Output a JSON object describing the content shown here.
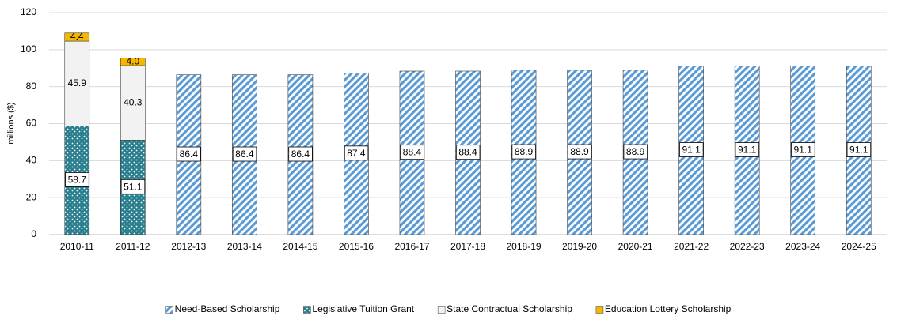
{
  "chart_data": {
    "type": "stacked_bar",
    "y_label": "millions ($)",
    "categories": [
      "2010-11",
      "2011-12",
      "2012-13",
      "2013-14",
      "2014-15",
      "2015-16",
      "2016-17",
      "2017-18",
      "2018-19",
      "2019-20",
      "2020-21",
      "2021-22",
      "2022-23",
      "2023-24",
      "2024-25"
    ],
    "series": [
      {
        "name": "Need-Based Scholarship",
        "color": "#5b9bd5",
        "pattern": "hatch",
        "label_style": "boxed",
        "values": [
          null,
          null,
          86.4,
          86.4,
          86.4,
          87.4,
          88.4,
          88.4,
          88.9,
          88.9,
          88.9,
          91.1,
          91.1,
          91.1,
          91.1
        ]
      },
      {
        "name": "Legislative Tuition Grant",
        "color": "#2a7f8f",
        "pattern": "dots",
        "label_style": "boxed",
        "values": [
          58.7,
          51.1,
          null,
          null,
          null,
          null,
          null,
          null,
          null,
          null,
          null,
          null,
          null,
          null,
          null
        ]
      },
      {
        "name": "State Contractual Scholarship",
        "color": "#f2f2f2",
        "pattern": "solid",
        "label_style": "plain",
        "values": [
          45.9,
          40.3,
          null,
          null,
          null,
          null,
          null,
          null,
          null,
          null,
          null,
          null,
          null,
          null,
          null
        ]
      },
      {
        "name": "Education Lottery Scholarship",
        "color": "#f5b700",
        "pattern": "solid",
        "label_style": "plain",
        "values": [
          4.4,
          4,
          null,
          null,
          null,
          null,
          null,
          null,
          null,
          null,
          null,
          null,
          null,
          null,
          null
        ],
        "value_labels": [
          "4.4",
          "4.0",
          null,
          null,
          null,
          null,
          null,
          null,
          null,
          null,
          null,
          null,
          null,
          null,
          null
        ]
      }
    ],
    "ylim": [
      0,
      120
    ],
    "yticks": [
      0,
      20,
      40,
      60,
      80,
      100,
      120
    ],
    "grid": true,
    "legend": "bottom"
  }
}
